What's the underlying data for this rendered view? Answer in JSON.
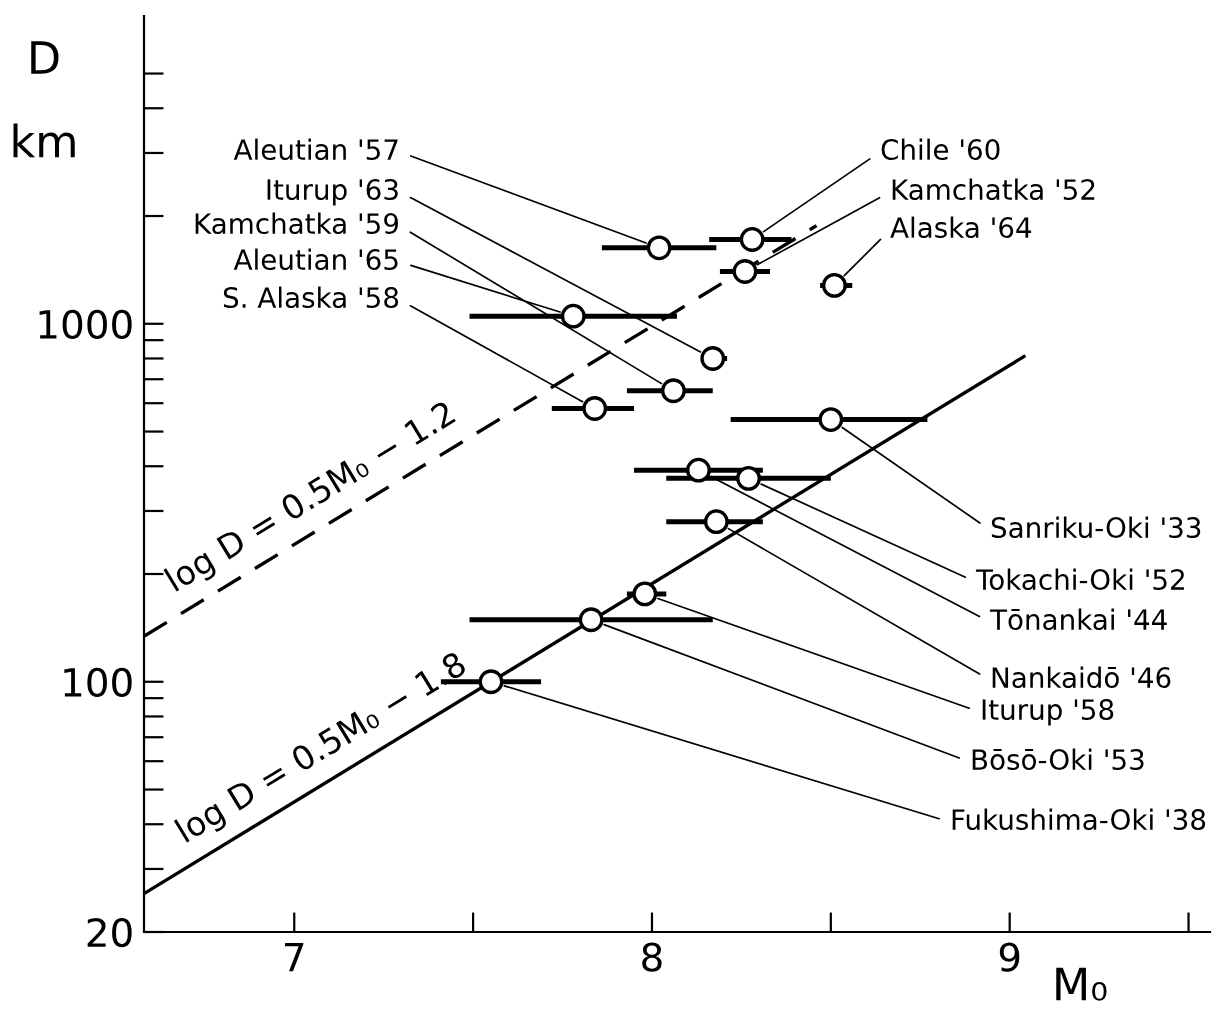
{
  "chart_data": {
    "type": "scatter",
    "ylabel": "D km",
    "xlabel": "M₀",
    "log": "y",
    "grid": false,
    "marker": "circle",
    "xlim": [
      6.58,
      9.56
    ],
    "ylim": [
      20,
      7240
    ],
    "xticks": [
      7,
      {
        "value": 7.5,
        "label": null
      },
      8,
      {
        "value": 8.5,
        "label": null
      },
      9,
      {
        "value": 9.5,
        "label": null
      }
    ],
    "yticks": [
      20,
      {
        "value": 30,
        "label": null
      },
      {
        "value": 40,
        "label": null
      },
      {
        "value": 50,
        "label": null
      },
      {
        "value": 60,
        "label": null
      },
      {
        "value": 70,
        "label": null
      },
      {
        "value": 80,
        "label": null
      },
      {
        "value": 90,
        "label": null
      },
      100,
      {
        "value": 200,
        "label": null
      },
      {
        "value": 300,
        "label": null
      },
      {
        "value": 400,
        "label": null
      },
      {
        "value": 500,
        "label": null
      },
      {
        "value": 600,
        "label": null
      },
      {
        "value": 700,
        "label": null
      },
      {
        "value": 800,
        "label": null
      },
      {
        "value": 900,
        "label": null
      },
      1000,
      {
        "value": 2000,
        "label": null
      },
      {
        "value": 3000,
        "label": null
      },
      {
        "value": 4000,
        "label": null
      },
      {
        "value": 5000,
        "label": null
      }
    ],
    "series": [
      {
        "color": "#000000",
        "x": [
          8.02,
          8.17,
          8.06,
          7.78,
          7.84,
          8.28,
          8.26,
          8.51,
          8.5,
          8.27,
          8.13,
          8.18,
          7.98,
          7.83,
          7.55
        ],
        "values": [
          1630,
          800,
          650,
          1050,
          580,
          1720,
          1400,
          1280,
          540,
          370,
          390,
          280,
          176,
          149,
          100
        ],
        "xerrors": [
          [
            7.86,
            8.18
          ],
          [
            8.15,
            8.21
          ],
          [
            7.93,
            8.17
          ],
          [
            7.49,
            8.07
          ],
          [
            7.72,
            7.95
          ],
          [
            8.16,
            8.39
          ],
          [
            8.19,
            8.33
          ],
          [
            8.47,
            8.56
          ],
          [
            8.22,
            8.77
          ],
          [
            8.04,
            8.5
          ],
          [
            7.95,
            8.31
          ],
          [
            8.04,
            8.31
          ],
          [
            7.93,
            8.04
          ],
          [
            7.49,
            8.17
          ],
          [
            7.41,
            7.69
          ]
        ]
      },
      {
        "type": "line",
        "name": "log D = 0.5M₀ − 1.2",
        "color": "#000000",
        "line_style": "dashed",
        "marker": "none",
        "x": [
          6.58,
          8.46
        ],
        "values": [
          134,
          1880
        ]
      },
      {
        "type": "line",
        "name": "log D = 0.5M₀ − 1.8",
        "color": "#000000",
        "line_style": "solid",
        "marker": "none",
        "x": [
          6.58,
          9.04
        ],
        "values": [
          25.6,
          810
        ]
      }
    ],
    "annotations": [
      {
        "text": "Aleutian '57",
        "x": 8.02,
        "y": 1630
      },
      {
        "text": "Iturup '63",
        "x": 8.17,
        "y": 800
      },
      {
        "text": "Kamchatka '59",
        "x": 8.06,
        "y": 650
      },
      {
        "text": "Aleutian '65",
        "x": 7.78,
        "y": 1050
      },
      {
        "text": "S. Alaska '58",
        "x": 7.84,
        "y": 580
      },
      {
        "text": "Chile '60",
        "x": 8.28,
        "y": 1720
      },
      {
        "text": "Kamchatka '52",
        "x": 8.26,
        "y": 1400
      },
      {
        "text": "Alaska '64",
        "x": 8.51,
        "y": 1280
      },
      {
        "text": "Sanriku-Oki '33",
        "x": 8.5,
        "y": 540
      },
      {
        "text": "Tokachi-Oki '52",
        "x": 8.27,
        "y": 370
      },
      {
        "text": "Tōnankai '44",
        "x": 8.13,
        "y": 390
      },
      {
        "text": "Nankaidō '46",
        "x": 8.18,
        "y": 280
      },
      {
        "text": "Iturup '58",
        "x": 7.98,
        "y": 176
      },
      {
        "text": "Bōsō-Oki '53",
        "x": 7.83,
        "y": 149
      },
      {
        "text": "Fukushima-Oki '38",
        "x": 7.55,
        "y": 100
      }
    ]
  }
}
